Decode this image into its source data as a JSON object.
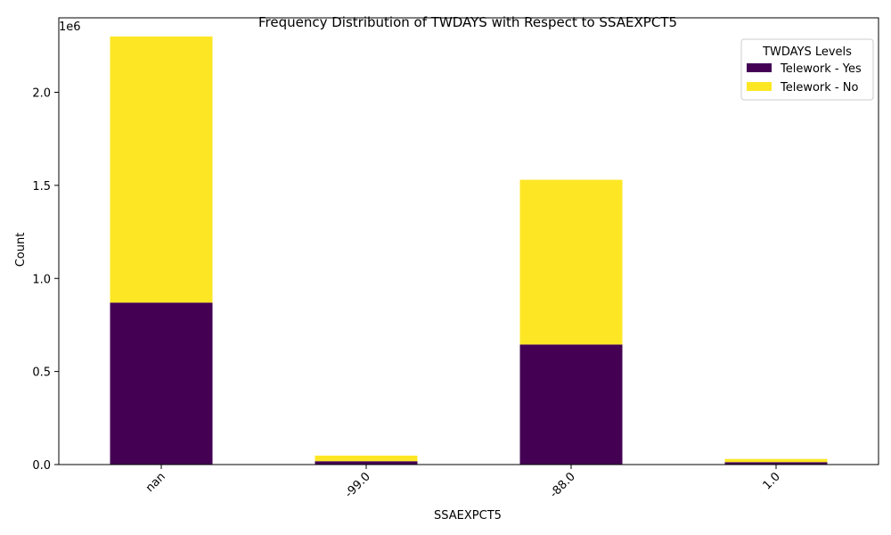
{
  "chart_data": {
    "type": "bar",
    "stacked": true,
    "title": "Frequency Distribution of TWDAYS with Respect to SSAEXPCT5",
    "xlabel": "SSAEXPCT5",
    "ylabel": "Count",
    "offset_label": "1e6",
    "categories": [
      "nan",
      "-99.0",
      "-88.0",
      "1.0"
    ],
    "series": [
      {
        "name": "Telework - Yes",
        "color": "#440154",
        "values": [
          870000,
          18000,
          645000,
          13000
        ]
      },
      {
        "name": "Telework - No",
        "color": "#fde725",
        "values": [
          1430000,
          30000,
          885000,
          17000
        ]
      }
    ],
    "ylim": [
      0,
      2400000
    ],
    "yticks": [
      0,
      500000,
      1000000,
      1500000,
      2000000
    ],
    "ytick_labels": [
      "0.0",
      "0.5",
      "1.0",
      "1.5",
      "2.0"
    ],
    "legend": {
      "title": "TWDAYS Levels",
      "placement": "top-right"
    },
    "grid": false
  }
}
